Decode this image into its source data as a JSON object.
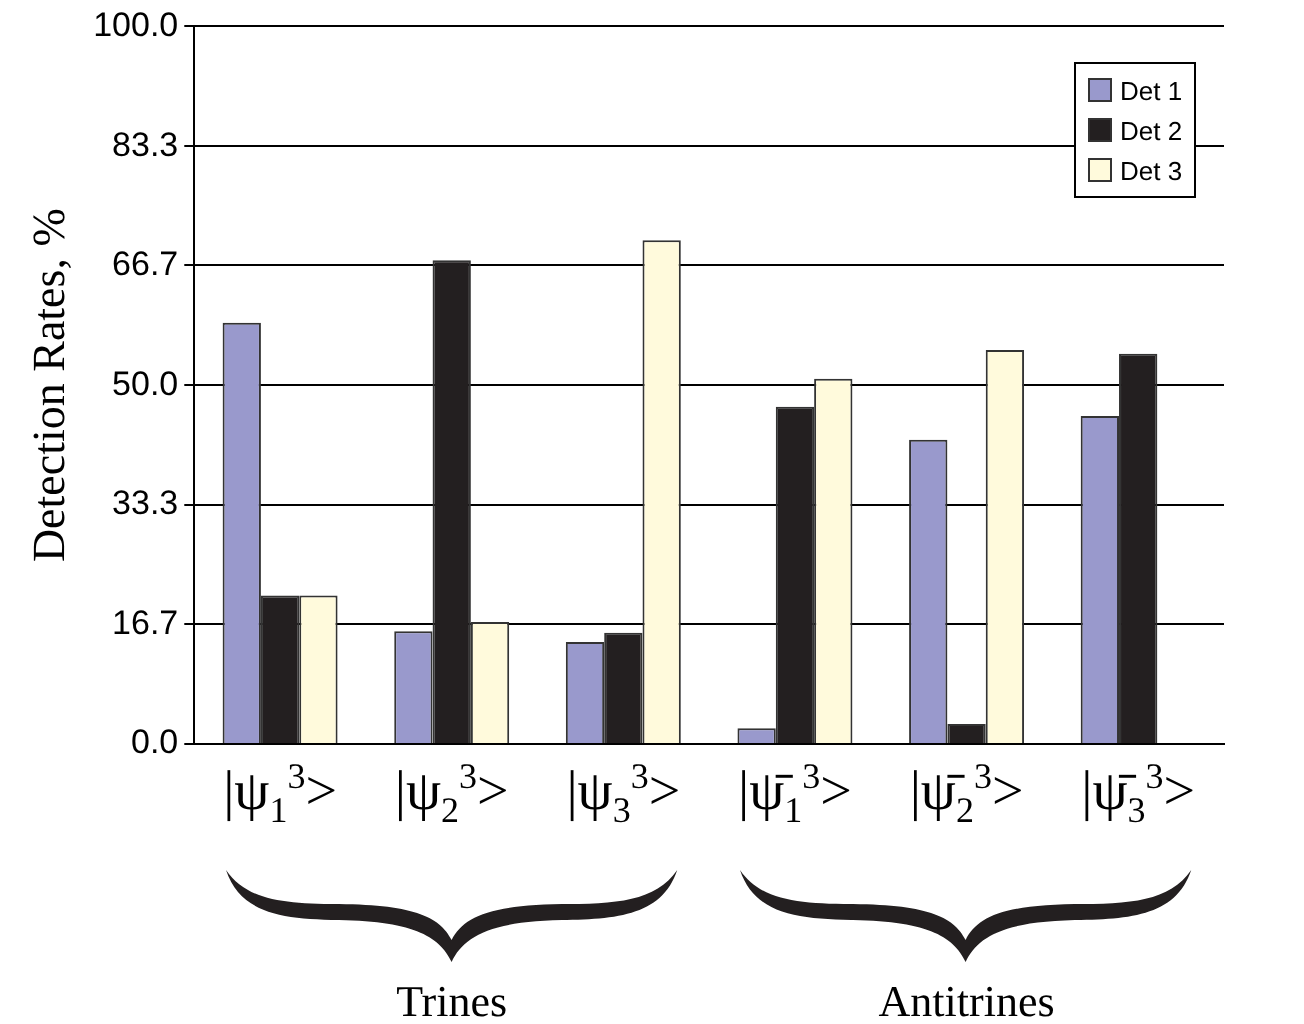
{
  "chart_data": {
    "type": "bar",
    "ylabel": "Detection Rates, %",
    "categories": [
      "|ψ$_{1}$$^{3}$>",
      "|ψ$_{2}$$^{3}$>",
      "|ψ$_{3}$$^{3}$>",
      "|ψ̄$_{1}$$^{3}$>",
      "|ψ̄$_{2}$$^{3}$>",
      "|ψ̄$_{3}$$^{3}$>"
    ],
    "series": [
      {
        "name": "Det 1",
        "color": "#9999cc",
        "values": [
          58.7,
          15.7,
          14.2,
          2.2,
          42.4,
          45.7
        ]
      },
      {
        "name": "Det 2",
        "color": "#231f20",
        "values": [
          20.7,
          67.4,
          15.5,
          47.0,
          2.8,
          54.4
        ]
      },
      {
        "name": "Det 3",
        "color": "#fffadc",
        "values": [
          20.7,
          17.0,
          70.2,
          50.9,
          54.9,
          null
        ]
      }
    ],
    "ylim": [
      0,
      100
    ],
    "yticks": [
      {
        "value": 0,
        "label": "0.0"
      },
      {
        "value": 16.7,
        "label": "16.7"
      },
      {
        "value": 33.3,
        "label": "33.3"
      },
      {
        "value": 50,
        "label": "50.0"
      },
      {
        "value": 66.7,
        "label": "66.7"
      },
      {
        "value": 83.3,
        "label": "83.3"
      },
      {
        "value": 100,
        "label": "100.0"
      }
    ],
    "grid": "y",
    "legend": "top right",
    "annotations": [
      "Trines",
      "Antitrines"
    ]
  }
}
